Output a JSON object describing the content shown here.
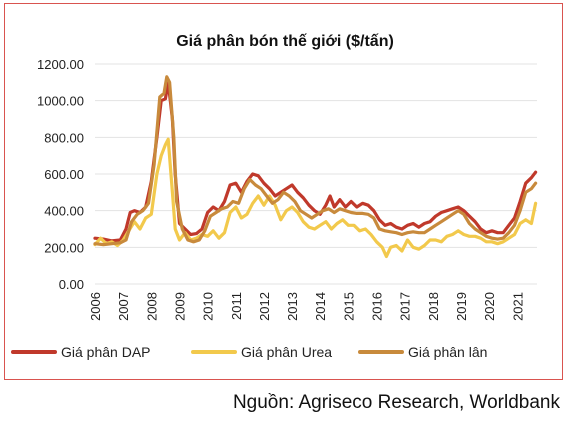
{
  "chart_data": {
    "type": "line",
    "title": "Giá phân bón thế giới ($/tấn)",
    "xlabel": "",
    "ylabel": "",
    "ylim": [
      0,
      1200
    ],
    "yticks": [
      "0.00",
      "200.00",
      "400.00",
      "600.00",
      "800.00",
      "1000.00",
      "1200.00"
    ],
    "xlim": [
      2006,
      2021.7
    ],
    "xticks": [
      "2006",
      "2007",
      "2008",
      "2009",
      "2010",
      "2011",
      "2012",
      "2013",
      "2014",
      "2015",
      "2016",
      "2017",
      "2018",
      "2019",
      "2020",
      "2021"
    ],
    "legend_position": "bottom",
    "series": [
      {
        "name": "Giá phân DAP",
        "color": "#c0392b",
        "points": [
          [
            2006.0,
            250
          ],
          [
            2006.3,
            245
          ],
          [
            2006.6,
            235
          ],
          [
            2006.9,
            240
          ],
          [
            2007.1,
            300
          ],
          [
            2007.25,
            390
          ],
          [
            2007.4,
            400
          ],
          [
            2007.6,
            390
          ],
          [
            2007.8,
            420
          ],
          [
            2008.0,
            560
          ],
          [
            2008.2,
            800
          ],
          [
            2008.35,
            1000
          ],
          [
            2008.5,
            1010
          ],
          [
            2008.6,
            1100
          ],
          [
            2008.75,
            900
          ],
          [
            2008.85,
            600
          ],
          [
            2009.0,
            330
          ],
          [
            2009.2,
            300
          ],
          [
            2009.4,
            270
          ],
          [
            2009.6,
            275
          ],
          [
            2009.8,
            300
          ],
          [
            2010.0,
            390
          ],
          [
            2010.2,
            420
          ],
          [
            2010.4,
            400
          ],
          [
            2010.6,
            450
          ],
          [
            2010.8,
            540
          ],
          [
            2011.0,
            550
          ],
          [
            2011.2,
            500
          ],
          [
            2011.4,
            560
          ],
          [
            2011.6,
            600
          ],
          [
            2011.8,
            590
          ],
          [
            2012.0,
            550
          ],
          [
            2012.2,
            520
          ],
          [
            2012.4,
            480
          ],
          [
            2012.6,
            500
          ],
          [
            2012.8,
            520
          ],
          [
            2013.0,
            540
          ],
          [
            2013.2,
            500
          ],
          [
            2013.4,
            470
          ],
          [
            2013.6,
            430
          ],
          [
            2013.8,
            400
          ],
          [
            2014.0,
            380
          ],
          [
            2014.2,
            430
          ],
          [
            2014.35,
            480
          ],
          [
            2014.5,
            420
          ],
          [
            2014.7,
            460
          ],
          [
            2014.9,
            420
          ],
          [
            2015.1,
            450
          ],
          [
            2015.3,
            420
          ],
          [
            2015.5,
            440
          ],
          [
            2015.7,
            430
          ],
          [
            2015.9,
            400
          ],
          [
            2016.1,
            350
          ],
          [
            2016.3,
            320
          ],
          [
            2016.5,
            330
          ],
          [
            2016.7,
            310
          ],
          [
            2016.9,
            300
          ],
          [
            2017.1,
            320
          ],
          [
            2017.3,
            330
          ],
          [
            2017.5,
            310
          ],
          [
            2017.7,
            330
          ],
          [
            2017.9,
            340
          ],
          [
            2018.1,
            370
          ],
          [
            2018.3,
            390
          ],
          [
            2018.5,
            400
          ],
          [
            2018.7,
            410
          ],
          [
            2018.9,
            420
          ],
          [
            2019.1,
            400
          ],
          [
            2019.3,
            370
          ],
          [
            2019.5,
            340
          ],
          [
            2019.7,
            300
          ],
          [
            2019.9,
            280
          ],
          [
            2020.1,
            290
          ],
          [
            2020.3,
            280
          ],
          [
            2020.5,
            280
          ],
          [
            2020.7,
            320
          ],
          [
            2020.9,
            360
          ],
          [
            2021.1,
            450
          ],
          [
            2021.3,
            550
          ],
          [
            2021.5,
            580
          ],
          [
            2021.65,
            610
          ]
        ]
      },
      {
        "name": "Giá phân Urea",
        "color": "#f2c94c",
        "points": [
          [
            2006.0,
            215
          ],
          [
            2006.2,
            250
          ],
          [
            2006.4,
            220
          ],
          [
            2006.6,
            230
          ],
          [
            2006.8,
            210
          ],
          [
            2007.0,
            240
          ],
          [
            2007.2,
            290
          ],
          [
            2007.4,
            340
          ],
          [
            2007.6,
            300
          ],
          [
            2007.8,
            360
          ],
          [
            2008.0,
            380
          ],
          [
            2008.2,
            600
          ],
          [
            2008.35,
            700
          ],
          [
            2008.5,
            760
          ],
          [
            2008.6,
            790
          ],
          [
            2008.75,
            500
          ],
          [
            2008.85,
            300
          ],
          [
            2009.0,
            240
          ],
          [
            2009.2,
            280
          ],
          [
            2009.4,
            240
          ],
          [
            2009.6,
            250
          ],
          [
            2009.8,
            270
          ],
          [
            2010.0,
            260
          ],
          [
            2010.2,
            290
          ],
          [
            2010.4,
            250
          ],
          [
            2010.6,
            280
          ],
          [
            2010.8,
            390
          ],
          [
            2011.0,
            420
          ],
          [
            2011.2,
            360
          ],
          [
            2011.4,
            380
          ],
          [
            2011.6,
            440
          ],
          [
            2011.8,
            480
          ],
          [
            2012.0,
            430
          ],
          [
            2012.2,
            480
          ],
          [
            2012.4,
            430
          ],
          [
            2012.6,
            350
          ],
          [
            2012.8,
            400
          ],
          [
            2013.0,
            420
          ],
          [
            2013.2,
            390
          ],
          [
            2013.4,
            340
          ],
          [
            2013.6,
            310
          ],
          [
            2013.8,
            300
          ],
          [
            2014.0,
            320
          ],
          [
            2014.2,
            340
          ],
          [
            2014.4,
            300
          ],
          [
            2014.6,
            330
          ],
          [
            2014.8,
            350
          ],
          [
            2015.0,
            320
          ],
          [
            2015.2,
            320
          ],
          [
            2015.4,
            290
          ],
          [
            2015.6,
            300
          ],
          [
            2015.8,
            270
          ],
          [
            2016.0,
            230
          ],
          [
            2016.2,
            200
          ],
          [
            2016.35,
            150
          ],
          [
            2016.5,
            200
          ],
          [
            2016.7,
            210
          ],
          [
            2016.9,
            180
          ],
          [
            2017.1,
            240
          ],
          [
            2017.3,
            200
          ],
          [
            2017.5,
            190
          ],
          [
            2017.7,
            210
          ],
          [
            2017.9,
            240
          ],
          [
            2018.1,
            240
          ],
          [
            2018.3,
            230
          ],
          [
            2018.5,
            260
          ],
          [
            2018.7,
            270
          ],
          [
            2018.9,
            290
          ],
          [
            2019.1,
            270
          ],
          [
            2019.3,
            260
          ],
          [
            2019.5,
            260
          ],
          [
            2019.7,
            250
          ],
          [
            2019.9,
            230
          ],
          [
            2020.1,
            230
          ],
          [
            2020.3,
            220
          ],
          [
            2020.5,
            230
          ],
          [
            2020.7,
            250
          ],
          [
            2020.9,
            270
          ],
          [
            2021.1,
            330
          ],
          [
            2021.3,
            350
          ],
          [
            2021.5,
            330
          ],
          [
            2021.65,
            440
          ]
        ]
      },
      {
        "name": "Giá phân lân",
        "color": "#c88a3c",
        "points": [
          [
            2006.0,
            220
          ],
          [
            2006.3,
            215
          ],
          [
            2006.6,
            220
          ],
          [
            2006.9,
            225
          ],
          [
            2007.1,
            240
          ],
          [
            2007.3,
            340
          ],
          [
            2007.5,
            380
          ],
          [
            2007.7,
            400
          ],
          [
            2007.9,
            440
          ],
          [
            2008.1,
            650
          ],
          [
            2008.3,
            1020
          ],
          [
            2008.45,
            1040
          ],
          [
            2008.55,
            1130
          ],
          [
            2008.65,
            1100
          ],
          [
            2008.8,
            800
          ],
          [
            2008.9,
            450
          ],
          [
            2009.1,
            300
          ],
          [
            2009.3,
            240
          ],
          [
            2009.5,
            230
          ],
          [
            2009.7,
            240
          ],
          [
            2009.9,
            290
          ],
          [
            2010.1,
            370
          ],
          [
            2010.3,
            390
          ],
          [
            2010.5,
            410
          ],
          [
            2010.7,
            420
          ],
          [
            2010.9,
            450
          ],
          [
            2011.1,
            440
          ],
          [
            2011.3,
            520
          ],
          [
            2011.5,
            570
          ],
          [
            2011.7,
            540
          ],
          [
            2011.9,
            520
          ],
          [
            2012.1,
            480
          ],
          [
            2012.3,
            440
          ],
          [
            2012.5,
            460
          ],
          [
            2012.7,
            500
          ],
          [
            2012.9,
            480
          ],
          [
            2013.1,
            450
          ],
          [
            2013.3,
            400
          ],
          [
            2013.5,
            380
          ],
          [
            2013.7,
            360
          ],
          [
            2013.9,
            380
          ],
          [
            2014.1,
            400
          ],
          [
            2014.3,
            410
          ],
          [
            2014.5,
            390
          ],
          [
            2014.7,
            410
          ],
          [
            2014.9,
            400
          ],
          [
            2015.1,
            390
          ],
          [
            2015.3,
            385
          ],
          [
            2015.5,
            385
          ],
          [
            2015.7,
            380
          ],
          [
            2015.9,
            360
          ],
          [
            2016.1,
            300
          ],
          [
            2016.3,
            290
          ],
          [
            2016.5,
            285
          ],
          [
            2016.7,
            280
          ],
          [
            2016.9,
            270
          ],
          [
            2017.1,
            280
          ],
          [
            2017.3,
            285
          ],
          [
            2017.5,
            280
          ],
          [
            2017.7,
            280
          ],
          [
            2017.9,
            300
          ],
          [
            2018.1,
            320
          ],
          [
            2018.3,
            340
          ],
          [
            2018.5,
            360
          ],
          [
            2018.7,
            380
          ],
          [
            2018.9,
            400
          ],
          [
            2019.1,
            380
          ],
          [
            2019.3,
            330
          ],
          [
            2019.5,
            300
          ],
          [
            2019.7,
            280
          ],
          [
            2019.9,
            260
          ],
          [
            2020.1,
            250
          ],
          [
            2020.3,
            245
          ],
          [
            2020.5,
            250
          ],
          [
            2020.7,
            280
          ],
          [
            2020.9,
            320
          ],
          [
            2021.1,
            400
          ],
          [
            2021.3,
            500
          ],
          [
            2021.5,
            520
          ],
          [
            2021.65,
            550
          ]
        ]
      }
    ]
  },
  "source": "Nguồn: Agriseco Research, Worldbank"
}
